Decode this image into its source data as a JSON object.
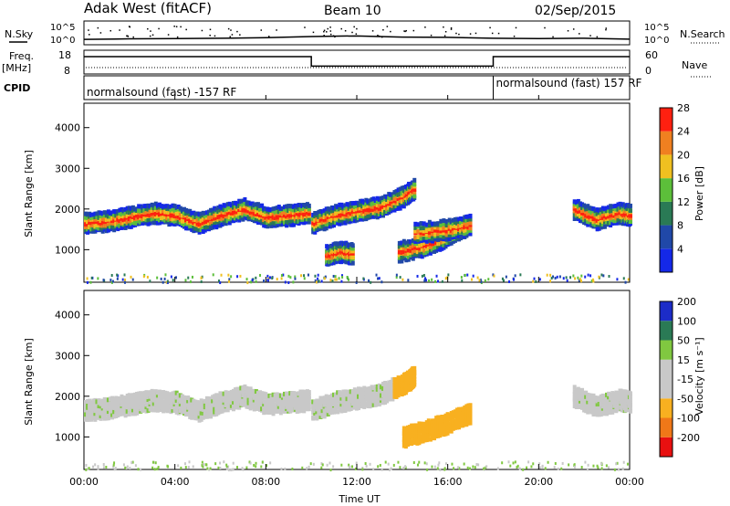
{
  "chart_data": [
    {
      "type": "line",
      "panel": "noise",
      "title_left": "Adak West (fitACF)",
      "title_center": "Beam 10",
      "title_right": "02/Sep/2015",
      "ylabel_left": "N.Sky",
      "ylabel_right": "N.Search",
      "ytick_left": [
        "10^5",
        "10^0"
      ],
      "ytick_right": [
        "10^5",
        "10^0"
      ],
      "x": [
        0,
        2,
        4,
        6,
        8,
        10,
        12,
        14,
        16,
        18,
        20,
        22,
        24
      ],
      "series": [
        {
          "values": [
            1.2,
            1.4,
            1.5,
            1.6,
            1.8,
            2.2,
            2.4,
            2.0,
            1.9,
            1.6,
            1.5,
            1.6,
            1.3
          ]
        }
      ]
    },
    {
      "type": "line",
      "panel": "frequency",
      "ylabel_left": "Freq.",
      "ylabel_left_unit": "[MHz]",
      "ylabel_right": "Nave",
      "yticks_left": [
        "18",
        "8"
      ],
      "yticks_right": [
        "60",
        "0"
      ],
      "ylim_left": [
        8,
        18
      ],
      "ylim_right": [
        0,
        60
      ],
      "x": [
        0,
        10,
        10,
        18,
        18,
        24
      ],
      "series": [
        {
          "values": [
            15.5,
            15.5,
            11.2,
            11.2,
            15.5,
            15.5
          ]
        }
      ]
    },
    {
      "type": "table",
      "panel": "cpid",
      "label": "CPID",
      "segments": [
        {
          "start": 0,
          "end": 18,
          "text": "normalsound (fast) -157 RF"
        },
        {
          "start": 18,
          "end": 24,
          "text": "normalsound (fast) 157 RF"
        }
      ]
    },
    {
      "type": "heatmap",
      "panel": "power",
      "ylabel": "Slant Range [km]",
      "yticks": [
        "1000",
        "2000",
        "3000",
        "4000"
      ],
      "ylim": [
        200,
        4600
      ],
      "xlim": [
        0,
        24
      ],
      "colorbar_label": "Power [dB]",
      "colorbar_ticks": [
        "4",
        "8",
        "12",
        "16",
        "20",
        "24",
        "28"
      ],
      "colorbar_colors": [
        "#1428e8",
        "#2048a8",
        "#2a7a55",
        "#5cbf3a",
        "#f0c020",
        "#f08020",
        "#ff2010"
      ],
      "bands": [
        {
          "x": [
            0,
            1,
            2,
            3,
            4,
            5,
            6,
            7,
            8,
            9,
            9.9
          ],
          "y": [
            1700,
            1750,
            1850,
            1950,
            1900,
            1700,
            1900,
            2050,
            1850,
            1900,
            1950
          ]
        },
        {
          "x": [
            10,
            11,
            12,
            13,
            14,
            14.5
          ],
          "y": [
            1700,
            1900,
            2000,
            2100,
            2350,
            2550
          ]
        },
        {
          "x": [
            10.6,
            11.2,
            11.8
          ],
          "y": [
            900,
            1000,
            950
          ]
        },
        {
          "x": [
            13.8,
            15,
            16,
            17
          ],
          "y": [
            1000,
            1150,
            1400,
            1700
          ]
        },
        {
          "x": [
            14.5,
            16,
            17
          ],
          "y": [
            1450,
            1550,
            1650
          ]
        },
        {
          "x": [
            21.5,
            22.5,
            23.5,
            24
          ],
          "y": [
            2050,
            1800,
            1950,
            1900
          ]
        }
      ]
    },
    {
      "type": "heatmap",
      "panel": "velocity",
      "ylabel": "Slant Range [km]",
      "yticks": [
        "1000",
        "2000",
        "3000",
        "4000"
      ],
      "ylim": [
        200,
        4600
      ],
      "xlim": [
        0,
        24
      ],
      "xticks": [
        "00:00",
        "04:00",
        "08:00",
        "12:00",
        "16:00",
        "20:00",
        "00:00"
      ],
      "xlabel": "Time UT",
      "colorbar_label": "Velocity [m s⁻¹]",
      "colorbar_ticks": [
        "-200",
        "-100",
        "-50",
        "-15",
        "15",
        "50",
        "100",
        "200"
      ],
      "colorbar_colors": [
        "#e81010",
        "#f07818",
        "#f8b020",
        "#c8c8c8",
        "#c8c8c8",
        "#80c840",
        "#2a7a55",
        "#1c2cc8"
      ],
      "bands": [
        {
          "x": [
            0,
            1,
            2,
            3,
            4,
            5,
            6,
            7,
            8,
            9,
            9.9
          ],
          "y": [
            1700,
            1750,
            1850,
            1950,
            1900,
            1700,
            1900,
            2050,
            1850,
            1900,
            1950
          ]
        },
        {
          "x": [
            10,
            11,
            12,
            13,
            14,
            14.5
          ],
          "y": [
            1700,
            1900,
            2000,
            2100,
            2350,
            2550
          ]
        },
        {
          "x": [
            14,
            15,
            16,
            17
          ],
          "y": [
            1050,
            1200,
            1400,
            1650
          ]
        },
        {
          "x": [
            21.5,
            22.5,
            23.5,
            24
          ],
          "y": [
            2050,
            1800,
            1950,
            1900
          ]
        }
      ]
    }
  ]
}
